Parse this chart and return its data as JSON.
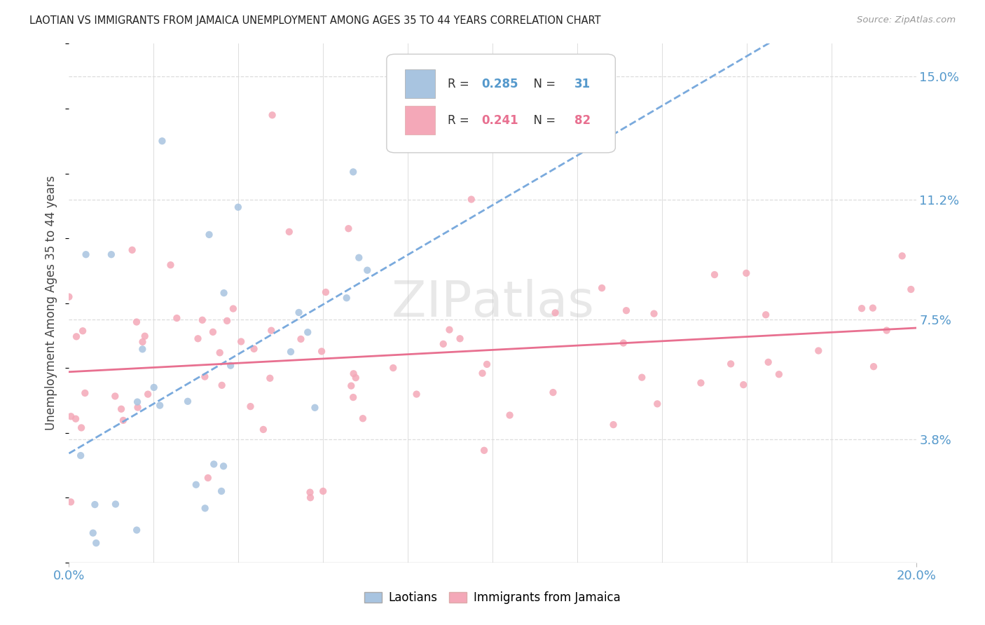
{
  "title": "LAOTIAN VS IMMIGRANTS FROM JAMAICA UNEMPLOYMENT AMONG AGES 35 TO 44 YEARS CORRELATION CHART",
  "source": "Source: ZipAtlas.com",
  "ylabel": "Unemployment Among Ages 35 to 44 years",
  "xlim": [
    0.0,
    0.2
  ],
  "ylim": [
    0.0,
    0.16
  ],
  "ytick_vals": [
    0.038,
    0.075,
    0.112,
    0.15
  ],
  "ytick_labels": [
    "3.8%",
    "7.5%",
    "11.2%",
    "15.0%"
  ],
  "xtick_vals": [
    0.0,
    0.2
  ],
  "xtick_labels": [
    "0.0%",
    "20.0%"
  ],
  "background_color": "#ffffff",
  "grid_color": "#dddddd",
  "laotian_color": "#a8c4e0",
  "jamaica_color": "#f4a8b8",
  "laotian_line_color": "#7aaadd",
  "jamaica_line_color": "#e87090",
  "axis_label_color": "#5599cc",
  "R_laotian": 0.285,
  "N_laotian": 31,
  "R_jamaica": 0.241,
  "N_jamaica": 82,
  "lao_seed": 7,
  "jam_seed": 13
}
